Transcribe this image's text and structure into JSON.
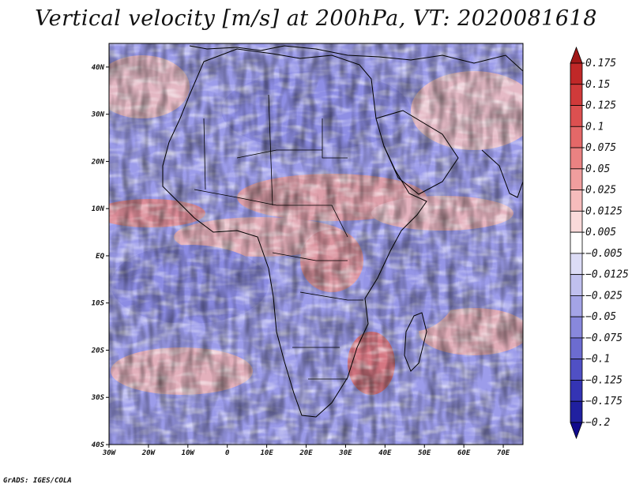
{
  "title": "Vertical velocity [m/s] at 200hPa, VT: 2020081618",
  "footer": "GrADS: IGES/COLA",
  "map": {
    "projection": "latlon",
    "lon_range": [
      -30,
      75
    ],
    "lat_range": [
      -40,
      45
    ],
    "x_ticks": [
      "30W",
      "20W",
      "10W",
      "0",
      "10E",
      "20E",
      "30E",
      "40E",
      "50E",
      "60E",
      "70E"
    ],
    "y_ticks": [
      "40N",
      "30N",
      "20N",
      "10N",
      "EQ",
      "10S",
      "20S",
      "30S",
      "40S"
    ],
    "field": "vertical velocity",
    "units": "m/s",
    "level": "200hPa",
    "valid_time": "2020081618"
  },
  "colorbar": {
    "labels_top_to_bottom": [
      "0.175",
      "0.15",
      "0.125",
      "0.1",
      "0.075",
      "0.05",
      "0.025",
      "0.0125",
      "0.005",
      "−0.005",
      "−0.0125",
      "−0.025",
      "−0.05",
      "−0.075",
      "−0.1",
      "−0.125",
      "−0.175",
      "−0.2"
    ],
    "colors_top_to_bottom": [
      "#a01818",
      "#c02828",
      "#d03a3a",
      "#dc5050",
      "#e46868",
      "#ea8282",
      "#f09e9e",
      "#f6bcbc",
      "#fadada",
      "#ffffff",
      "#dcdcf6",
      "#c0c0ee",
      "#a4a4e6",
      "#8888dc",
      "#6c6cd0",
      "#5050c4",
      "#3434b4",
      "#2020a0",
      "#100a8c"
    ]
  },
  "colors": {
    "positive": "#d23c3c",
    "negative": "#5a5ad2",
    "background_field": "#f4e8f0",
    "coastline": "#000000"
  }
}
